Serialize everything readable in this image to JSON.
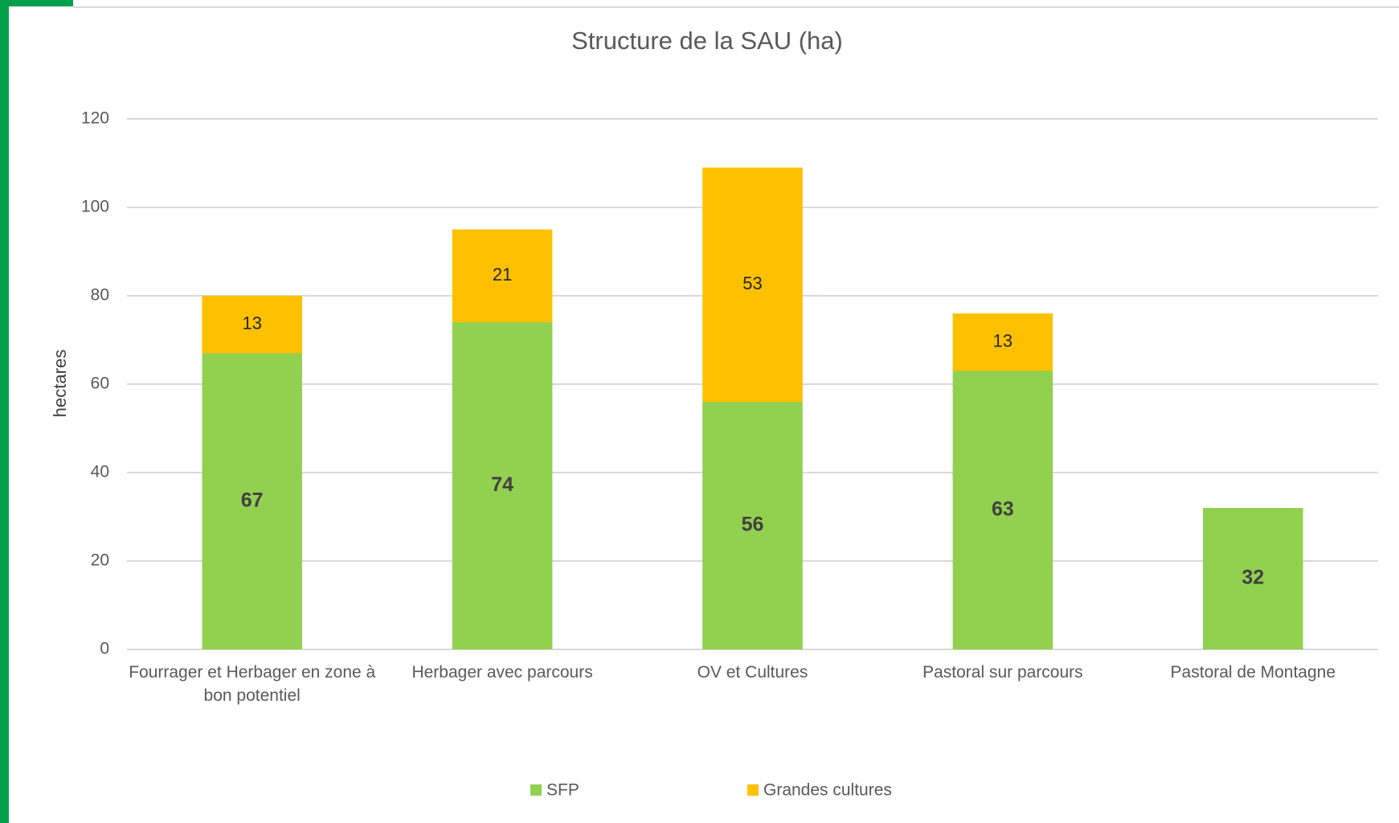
{
  "chart_data": {
    "type": "stacked_bar",
    "title": "Structure de la SAU (ha)",
    "y_label": "hectares",
    "categories": [
      "Fourrager et Herbager en zone à bon potentiel",
      "Herbager avec parcours",
      "OV et Cultures",
      "Pastoral sur parcours",
      "Pastoral de Montagne"
    ],
    "series": [
      {
        "name": "SFP",
        "color": "#92d050",
        "values": [
          67,
          74,
          56,
          63,
          32
        ]
      },
      {
        "name": "Grandes cultures",
        "color": "#ffc000",
        "values": [
          13,
          21,
          53,
          13,
          null
        ]
      }
    ],
    "ylim": [
      0,
      120
    ],
    "yticks": [
      0,
      20,
      40,
      60,
      80,
      100,
      120
    ],
    "grid": true,
    "legend": "bottom"
  }
}
